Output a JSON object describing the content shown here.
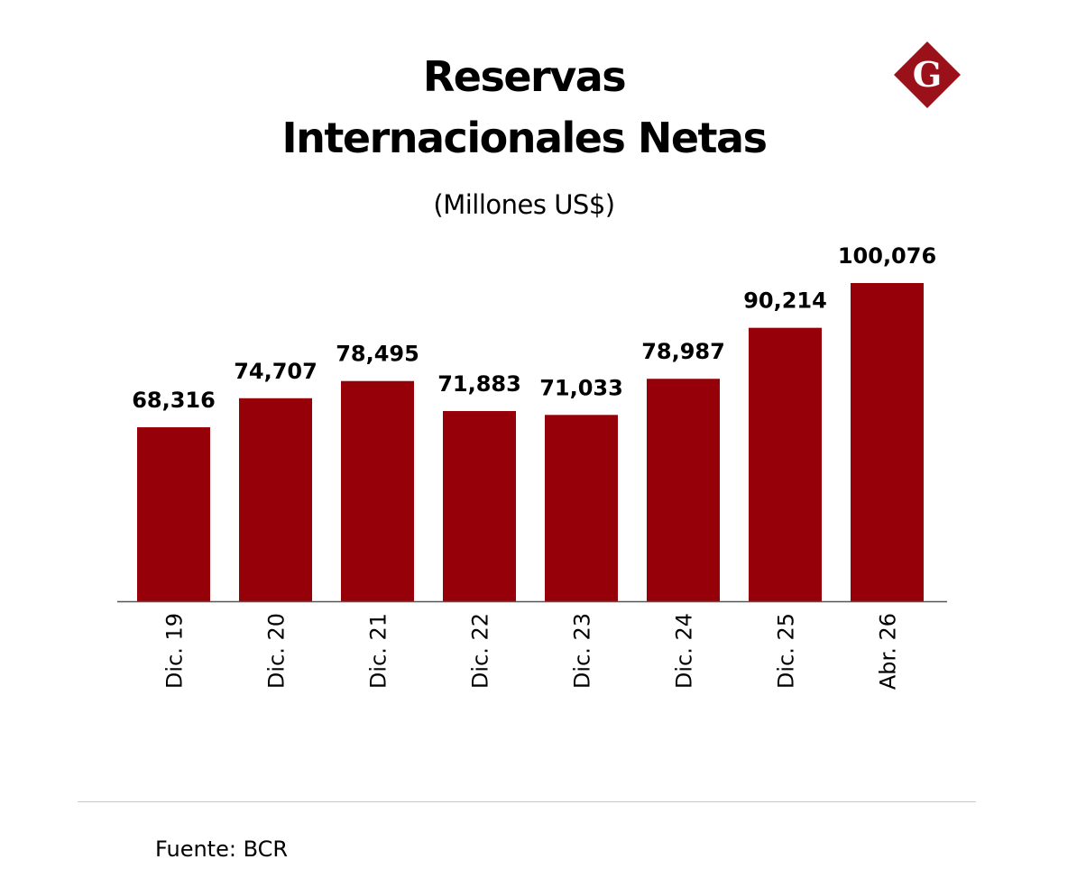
{
  "chart_data": {
    "type": "bar",
    "title": "Reservas Internacionales Netas",
    "title_lines": [
      "Reservas",
      "Internacionales Netas"
    ],
    "subtitle": "(Millones US$)",
    "categories": [
      "Dic. 19",
      "Dic. 20",
      "Dic. 21",
      "Dic. 22",
      "Dic. 23",
      "Dic. 24",
      "Dic. 25",
      "Abr. 26"
    ],
    "values": [
      68316,
      74707,
      78495,
      71883,
      71033,
      78987,
      90214,
      100076
    ],
    "data_labels": [
      "68,316",
      "74,707",
      "78,495",
      "71,883",
      "71,033",
      "78,987",
      "90,214",
      "100,076"
    ],
    "ylim": [
      30000,
      110000
    ],
    "grid": false,
    "bar_color": "#960008",
    "axis_color": "#555555"
  },
  "logo": {
    "letter": "G",
    "color": "#9b1119"
  },
  "footer": {
    "source": "Fuente: BCR"
  }
}
